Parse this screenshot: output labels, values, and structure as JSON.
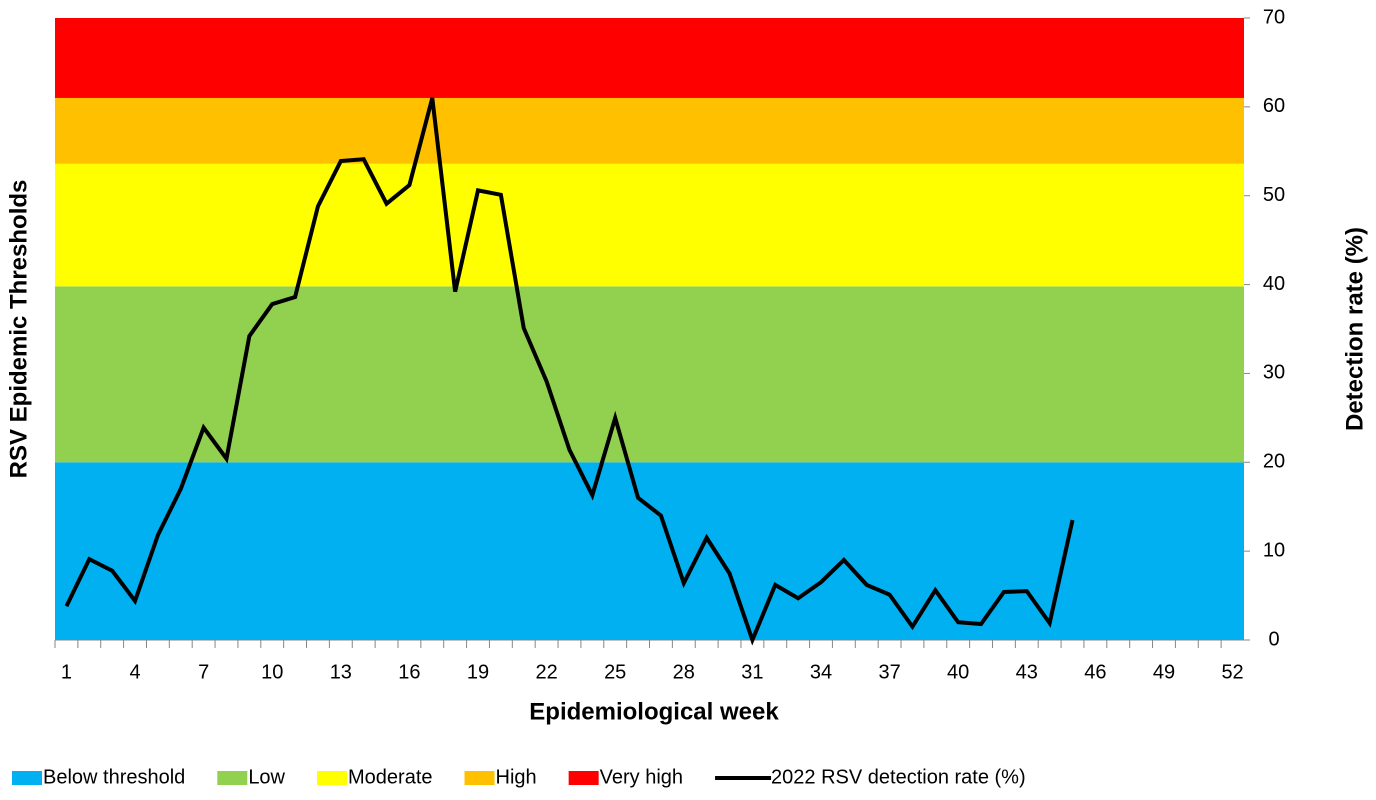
{
  "chart_data": {
    "type": "line",
    "x_label": "Epidemiological week",
    "y_label": "RSV Epidemic Thresholds",
    "y2_label": "Detection rate (%)",
    "xlim": [
      0.5,
      52.5
    ],
    "xticks": [
      1,
      4,
      7,
      10,
      13,
      16,
      19,
      22,
      25,
      28,
      31,
      34,
      37,
      40,
      43,
      46,
      49,
      52
    ],
    "y2lim": [
      0,
      70
    ],
    "y2ticks": [
      0,
      10,
      20,
      30,
      40,
      50,
      60,
      70
    ],
    "thresholds": [
      {
        "name": "Below threshold",
        "color": "#00b0f0",
        "range": [
          0,
          20
        ]
      },
      {
        "name": "Low",
        "color": "#92d050",
        "range": [
          20,
          39.8
        ]
      },
      {
        "name": "Moderate",
        "color": "#ffff00",
        "range": [
          39.8,
          53.6
        ]
      },
      {
        "name": "High",
        "color": "#ffc000",
        "range": [
          53.6,
          61
        ]
      },
      {
        "name": "Very high",
        "color": "#ff0000",
        "range": [
          61,
          70
        ]
      }
    ],
    "series": [
      {
        "name": "2022 RSV detection rate (%)",
        "color": "#000000",
        "axis": "y2",
        "x": [
          1,
          2,
          3,
          4,
          5,
          6,
          7,
          8,
          9,
          10,
          11,
          12,
          13,
          14,
          15,
          16,
          17,
          18,
          19,
          20,
          21,
          22,
          23,
          24,
          25,
          26,
          27,
          28,
          29,
          30,
          31,
          32,
          33,
          34,
          35,
          36,
          37,
          38,
          39,
          40,
          41,
          42,
          43,
          44,
          45
        ],
        "values": [
          3.8,
          9.1,
          7.8,
          4.4,
          11.8,
          17.0,
          23.9,
          20.4,
          34.2,
          37.8,
          38.6,
          48.8,
          53.9,
          54.1,
          49.1,
          51.2,
          61.0,
          39.2,
          50.6,
          50.1,
          35.1,
          29.1,
          21.4,
          16.3,
          25.0,
          16.0,
          14.0,
          6.4,
          11.5,
          7.5,
          0,
          6.2,
          4.7,
          6.5,
          9.0,
          6.2,
          5.1,
          1.5,
          5.6,
          2.0,
          1.8,
          5.4,
          5.5,
          1.9,
          13.5
        ]
      }
    ]
  }
}
